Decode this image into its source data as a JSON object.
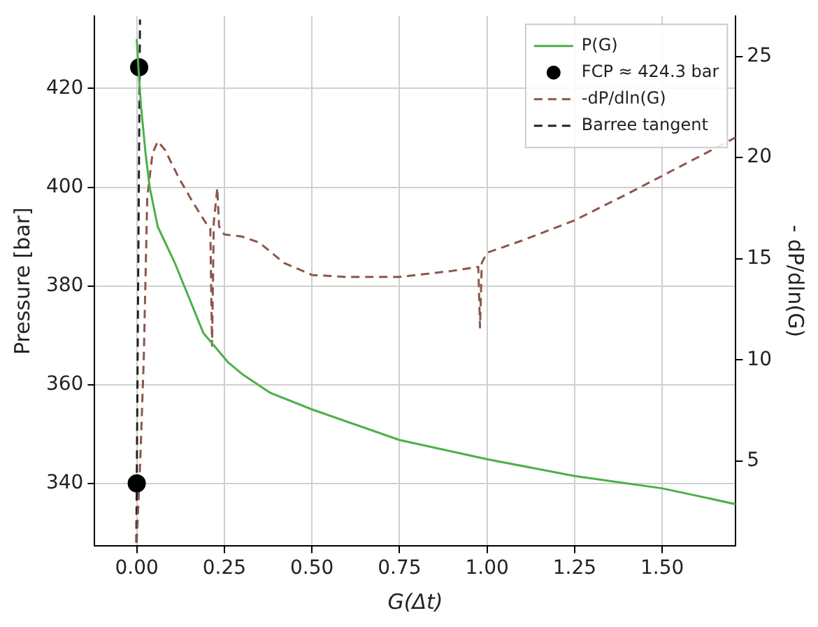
{
  "chart_data": {
    "type": "line",
    "xlabel": "G(Δt)",
    "ylabel": "Pressure [bar]",
    "y2label": "- dP/dln(G)",
    "xlim": [
      -0.12,
      1.71
    ],
    "xticks": [
      {
        "value": 0,
        "label": "0.00"
      },
      {
        "value": 0.25,
        "label": "0.25"
      },
      {
        "value": 0.5,
        "label": "0.50"
      },
      {
        "value": 0.75,
        "label": "0.75"
      },
      {
        "value": 1,
        "label": "1.00"
      },
      {
        "value": 1.25,
        "label": "1.25"
      },
      {
        "value": 1.5,
        "label": "1.50"
      }
    ],
    "ylim": [
      327.3,
      434.7
    ],
    "yticks": [
      340,
      360,
      380,
      400,
      420
    ],
    "y2lim": [
      0.8,
      27
    ],
    "y2ticks": [
      5,
      10,
      15,
      20,
      25
    ],
    "grid": true,
    "legend": "top right",
    "series": [
      {
        "name": "P(G)",
        "type": "line",
        "color": "#4daf4a",
        "line_style": "solid",
        "x": [
          0,
          0.005,
          0.012,
          0.025,
          0.037,
          0.06,
          0.108,
          0.19,
          0.26,
          0.3,
          0.38,
          0.5,
          0.75,
          1.0,
          1.25,
          1.5,
          1.71
        ],
        "values": [
          430,
          424,
          416.6,
          407,
          400,
          392,
          384.8,
          370.5,
          364.6,
          362.2,
          358.4,
          355,
          348.8,
          344.9,
          341.5,
          339,
          335.8
        ]
      },
      {
        "name": "FCP ≈ 424.3 bar",
        "type": "scatter",
        "color": "#000000",
        "marker": "circle",
        "x": [
          0.007,
          0
        ],
        "values": [
          424.3,
          340
        ]
      },
      {
        "name": "-dP/dln(G)",
        "type": "line",
        "axis": "y2",
        "color": "#8c564b",
        "line_style": "dashed",
        "x": [
          0,
          0.01,
          0.02,
          0.03,
          0.045,
          0.06,
          0.08,
          0.12,
          0.16,
          0.2,
          0.21,
          0.215,
          0.22,
          0.23,
          0.235,
          0.25,
          0.3,
          0.35,
          0.42,
          0.5,
          0.6,
          0.75,
          0.9,
          0.975,
          0.98,
          0.985,
          1.0,
          1.1,
          1.25,
          1.4,
          1.5,
          1.6,
          1.71
        ],
        "values": [
          1,
          5,
          10,
          18,
          20.2,
          20.8,
          20.4,
          19,
          17.8,
          16.7,
          16.5,
          10.7,
          16.8,
          18.5,
          16.6,
          16.2,
          16.1,
          15.8,
          14.8,
          14.2,
          14.1,
          14.1,
          14.4,
          14.6,
          11.6,
          14.8,
          15.3,
          15.9,
          16.9,
          18.2,
          19.1,
          20,
          21
        ]
      },
      {
        "name": "Barree tangent",
        "type": "line",
        "color": "#222222",
        "line_style": "dashed",
        "x": [
          -0.0011,
          0.0093
        ],
        "values": [
          328,
          434
        ]
      }
    ]
  }
}
